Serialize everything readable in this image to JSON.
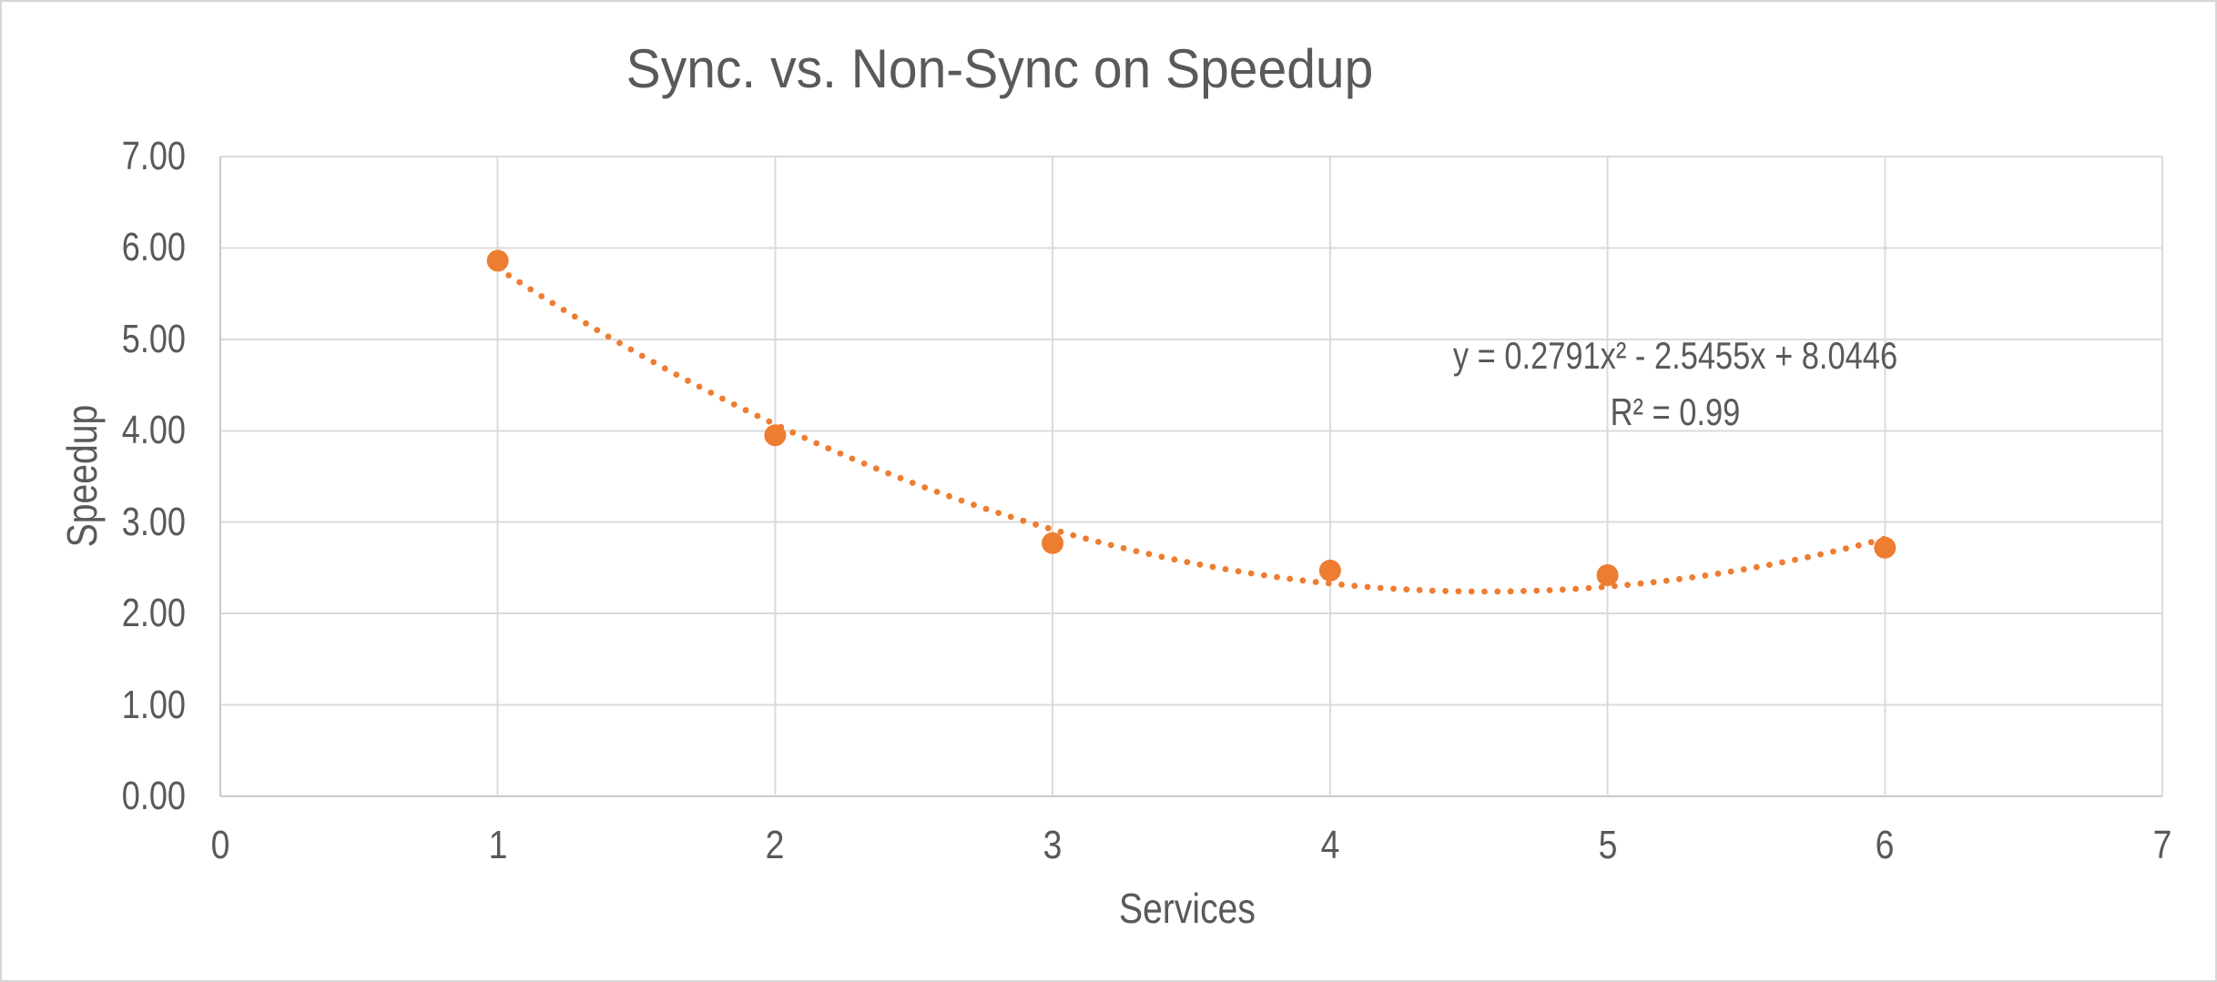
{
  "chart_data": {
    "type": "scatter",
    "title": "Sync. vs. Non-Sync on Speedup",
    "xlabel": "Services",
    "ylabel": "Speedup",
    "xlim": [
      0,
      7
    ],
    "ylim": [
      0,
      7
    ],
    "x": [
      1,
      2,
      3,
      4,
      5,
      6
    ],
    "y": [
      5.86,
      3.95,
      2.77,
      2.47,
      2.42,
      2.72
    ],
    "x_ticks": [
      {
        "value": 0,
        "label": "0"
      },
      {
        "value": 1,
        "label": "1"
      },
      {
        "value": 2,
        "label": "2"
      },
      {
        "value": 3,
        "label": "3"
      },
      {
        "value": 4,
        "label": "4"
      },
      {
        "value": 5,
        "label": "5"
      },
      {
        "value": 6,
        "label": "6"
      },
      {
        "value": 7,
        "label": "7"
      }
    ],
    "y_ticks": [
      {
        "value": 0,
        "label": "0.00"
      },
      {
        "value": 1,
        "label": "1.00"
      },
      {
        "value": 2,
        "label": "2.00"
      },
      {
        "value": 3,
        "label": "3.00"
      },
      {
        "value": 4,
        "label": "4.00"
      },
      {
        "value": 5,
        "label": "5.00"
      },
      {
        "value": 6,
        "label": "6.00"
      },
      {
        "value": 7,
        "label": "7.00"
      }
    ],
    "grid": {
      "horizontal": true,
      "vertical": true
    },
    "legend": "none",
    "marker_color": "#ED7D31",
    "trendline": {
      "type": "polynomial",
      "order": 2,
      "style": "dotted",
      "color": "#ED7D31",
      "coefficients": {
        "a": 0.2791,
        "b": -2.5455,
        "c": 8.0446
      },
      "x_start": 1,
      "x_end": 6,
      "equation_label": "y = 0.2791x² - 2.5455x + 8.0446",
      "r_squared_label": "R² = 0.99"
    },
    "colors": {
      "text": "#595959",
      "gridline": "#DBDBDB",
      "axis_line": "#C9C9C9",
      "background": "#FFFFFF",
      "border": "#D6D6D6"
    }
  }
}
